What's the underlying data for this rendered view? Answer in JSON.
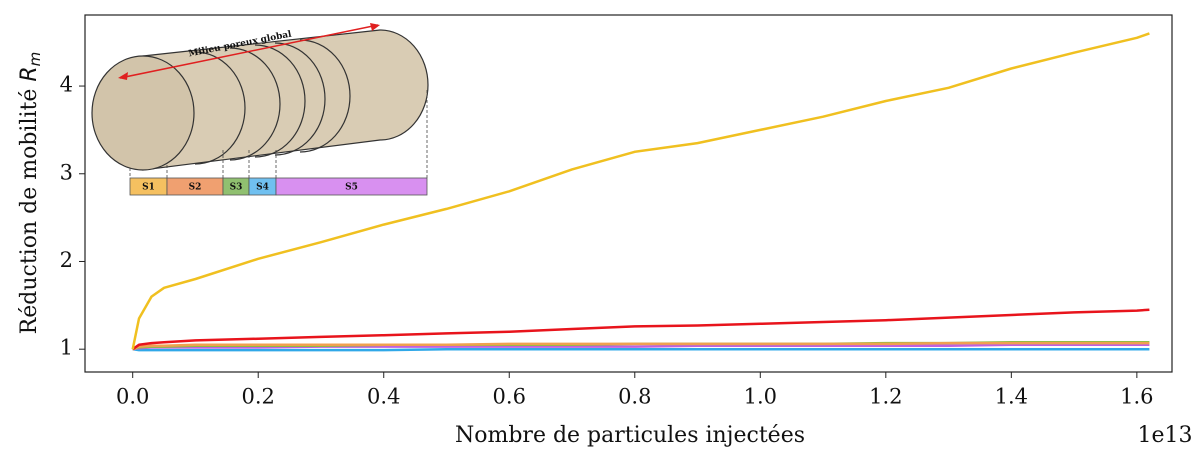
{
  "chart_data": {
    "type": "line",
    "xlabel": "Nombre de particules injectées",
    "x_offset_label": "1e13",
    "ylabel": "Réduction de mobilité ",
    "ylabel_symbol": "R",
    "ylabel_subscript": "m",
    "xlim": [
      -0.076,
      1.656
    ],
    "ylim": [
      0.74,
      4.81
    ],
    "xticks": [
      {
        "value": 0,
        "label": "0.0"
      },
      0.2,
      0.4,
      0.6,
      0.8,
      {
        "value": 1,
        "label": "1.0"
      },
      1.2,
      1.4,
      1.6
    ],
    "yticks": [
      1,
      2,
      3,
      4
    ],
    "x": [
      0,
      0.01,
      0.03,
      0.05,
      0.1,
      0.2,
      0.3,
      0.4,
      0.5,
      0.6,
      0.7,
      0.8,
      0.9,
      1.0,
      1.1,
      1.2,
      1.3,
      1.4,
      1.5,
      1.6,
      1.62
    ],
    "series": [
      {
        "color": "#f0c020",
        "values": [
          1.0,
          1.35,
          1.6,
          1.7,
          1.8,
          2.03,
          2.22,
          2.42,
          2.6,
          2.8,
          3.05,
          3.25,
          3.35,
          3.5,
          3.65,
          3.83,
          3.98,
          4.2,
          4.38,
          4.55,
          4.6
        ]
      },
      {
        "color": "#e8141c",
        "values": [
          1.0,
          1.05,
          1.07,
          1.08,
          1.1,
          1.12,
          1.14,
          1.16,
          1.18,
          1.2,
          1.23,
          1.26,
          1.27,
          1.29,
          1.31,
          1.33,
          1.36,
          1.39,
          1.42,
          1.44,
          1.45
        ]
      },
      {
        "color": "#f0a050",
        "values": [
          1.0,
          1.03,
          1.04,
          1.04,
          1.05,
          1.05,
          1.05,
          1.05,
          1.05,
          1.06,
          1.06,
          1.06,
          1.06,
          1.06,
          1.06,
          1.06,
          1.07,
          1.07,
          1.07,
          1.07,
          1.07
        ]
      },
      {
        "color": "#8cc040",
        "values": [
          1.0,
          1.02,
          1.03,
          1.03,
          1.04,
          1.04,
          1.04,
          1.05,
          1.05,
          1.05,
          1.05,
          1.06,
          1.06,
          1.06,
          1.06,
          1.07,
          1.07,
          1.08,
          1.08,
          1.08,
          1.08
        ]
      },
      {
        "color": "#c060e0",
        "values": [
          1.0,
          1.01,
          1.02,
          1.02,
          1.02,
          1.02,
          1.03,
          1.03,
          1.03,
          1.03,
          1.03,
          1.03,
          1.04,
          1.04,
          1.04,
          1.04,
          1.04,
          1.05,
          1.05,
          1.05,
          1.05
        ]
      },
      {
        "color": "#30a8e8",
        "values": [
          1.0,
          0.99,
          0.99,
          0.99,
          0.99,
          0.99,
          0.99,
          0.99,
          1.0,
          1.0,
          1.0,
          1.0,
          1.0,
          1.0,
          1.0,
          1.0,
          1.0,
          1.0,
          1.0,
          1.0,
          1.0
        ]
      }
    ],
    "inset": {
      "label": "Milieu poreux global",
      "segments": [
        {
          "label": "S1",
          "color": "#f5c060"
        },
        {
          "label": "S2",
          "color": "#f0a070"
        },
        {
          "label": "S3",
          "color": "#90c070"
        },
        {
          "label": "S4",
          "color": "#70c0f0"
        },
        {
          "label": "S5",
          "color": "#d890f0"
        }
      ]
    }
  }
}
